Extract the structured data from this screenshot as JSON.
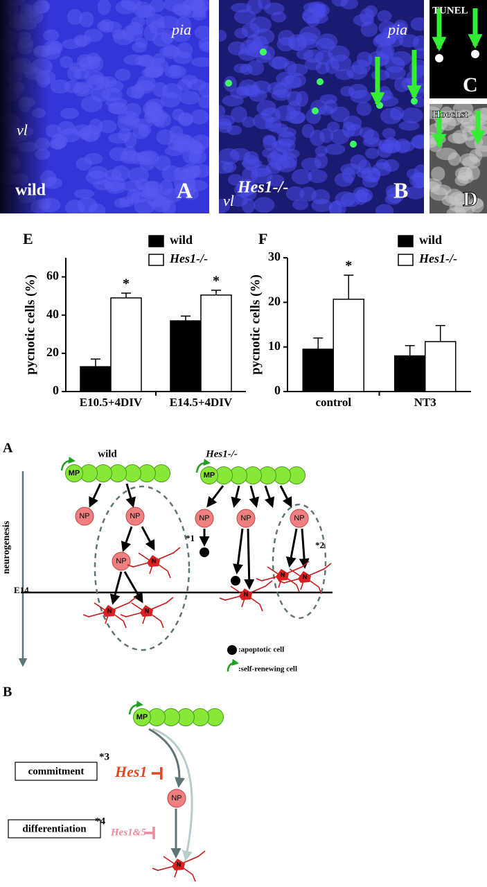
{
  "micrographs": [
    {
      "letter": "A",
      "pia": "pia",
      "vl": "vl",
      "genotype": "wild"
    },
    {
      "letter": "B",
      "pia": "pia",
      "vl": "vl",
      "genotype": "Hes1-/-"
    },
    {
      "letter": "C",
      "stain": "TUNEL"
    },
    {
      "letter": "D",
      "stain": "Hoechst"
    }
  ],
  "chart_data": [
    {
      "type": "bar",
      "panel": "E",
      "ylabel": "pycnotic cells (%)",
      "categories": [
        "E10.5+4DIV",
        "E14.5+4DIV"
      ],
      "series": [
        {
          "name": "wild",
          "color": "#000000",
          "values": [
            13,
            37
          ],
          "errors": [
            4,
            2.5
          ]
        },
        {
          "name": "Hes1-/-",
          "color": "#ffffff",
          "values": [
            49,
            50.5
          ],
          "errors": [
            2.5,
            2.5
          ],
          "significance": [
            "*",
            "*"
          ]
        }
      ],
      "ylim": [
        0,
        70
      ],
      "yticks": [
        0,
        20,
        40,
        60
      ]
    },
    {
      "type": "bar",
      "panel": "F",
      "ylabel": "pycnotic cells (%)",
      "categories": [
        "control",
        "NT3"
      ],
      "series": [
        {
          "name": "wild",
          "color": "#000000",
          "values": [
            9.5,
            8
          ],
          "errors": [
            2.5,
            2.3
          ]
        },
        {
          "name": "Hes1-/-",
          "color": "#ffffff",
          "values": [
            20.7,
            11.2
          ],
          "errors": [
            5.4,
            3.6
          ],
          "significance": [
            "*",
            null
          ]
        }
      ],
      "ylim": [
        0,
        30
      ],
      "yticks": [
        0,
        10,
        20,
        30
      ]
    }
  ],
  "model_a": {
    "letter": "A",
    "axis_label": "neurogenesis",
    "timepoint": "E14",
    "wild": {
      "title": "wild",
      "progenitor": "MP",
      "precursors": [
        "NP",
        "NP",
        "NP"
      ],
      "neurons": [
        "N",
        "N",
        "N"
      ]
    },
    "mutant": {
      "title": "Hes1-/-",
      "progenitor": "MP",
      "precursors": [
        "NP",
        "NP",
        "NP"
      ],
      "neurons": [
        "N",
        "N",
        "N"
      ],
      "notes": [
        "*1",
        "*2"
      ]
    },
    "legend": [
      ":apoptotic cell",
      ":self-renewing cell"
    ]
  },
  "model_b": {
    "letter": "B",
    "progenitor": "MP",
    "precursor": "NP",
    "neuron": "N",
    "steps": [
      {
        "label": "commitment",
        "note": "*3",
        "regulator": "Hes1"
      },
      {
        "label": "differentiation",
        "note": "*4",
        "regulator": "Hes1&5"
      }
    ]
  }
}
